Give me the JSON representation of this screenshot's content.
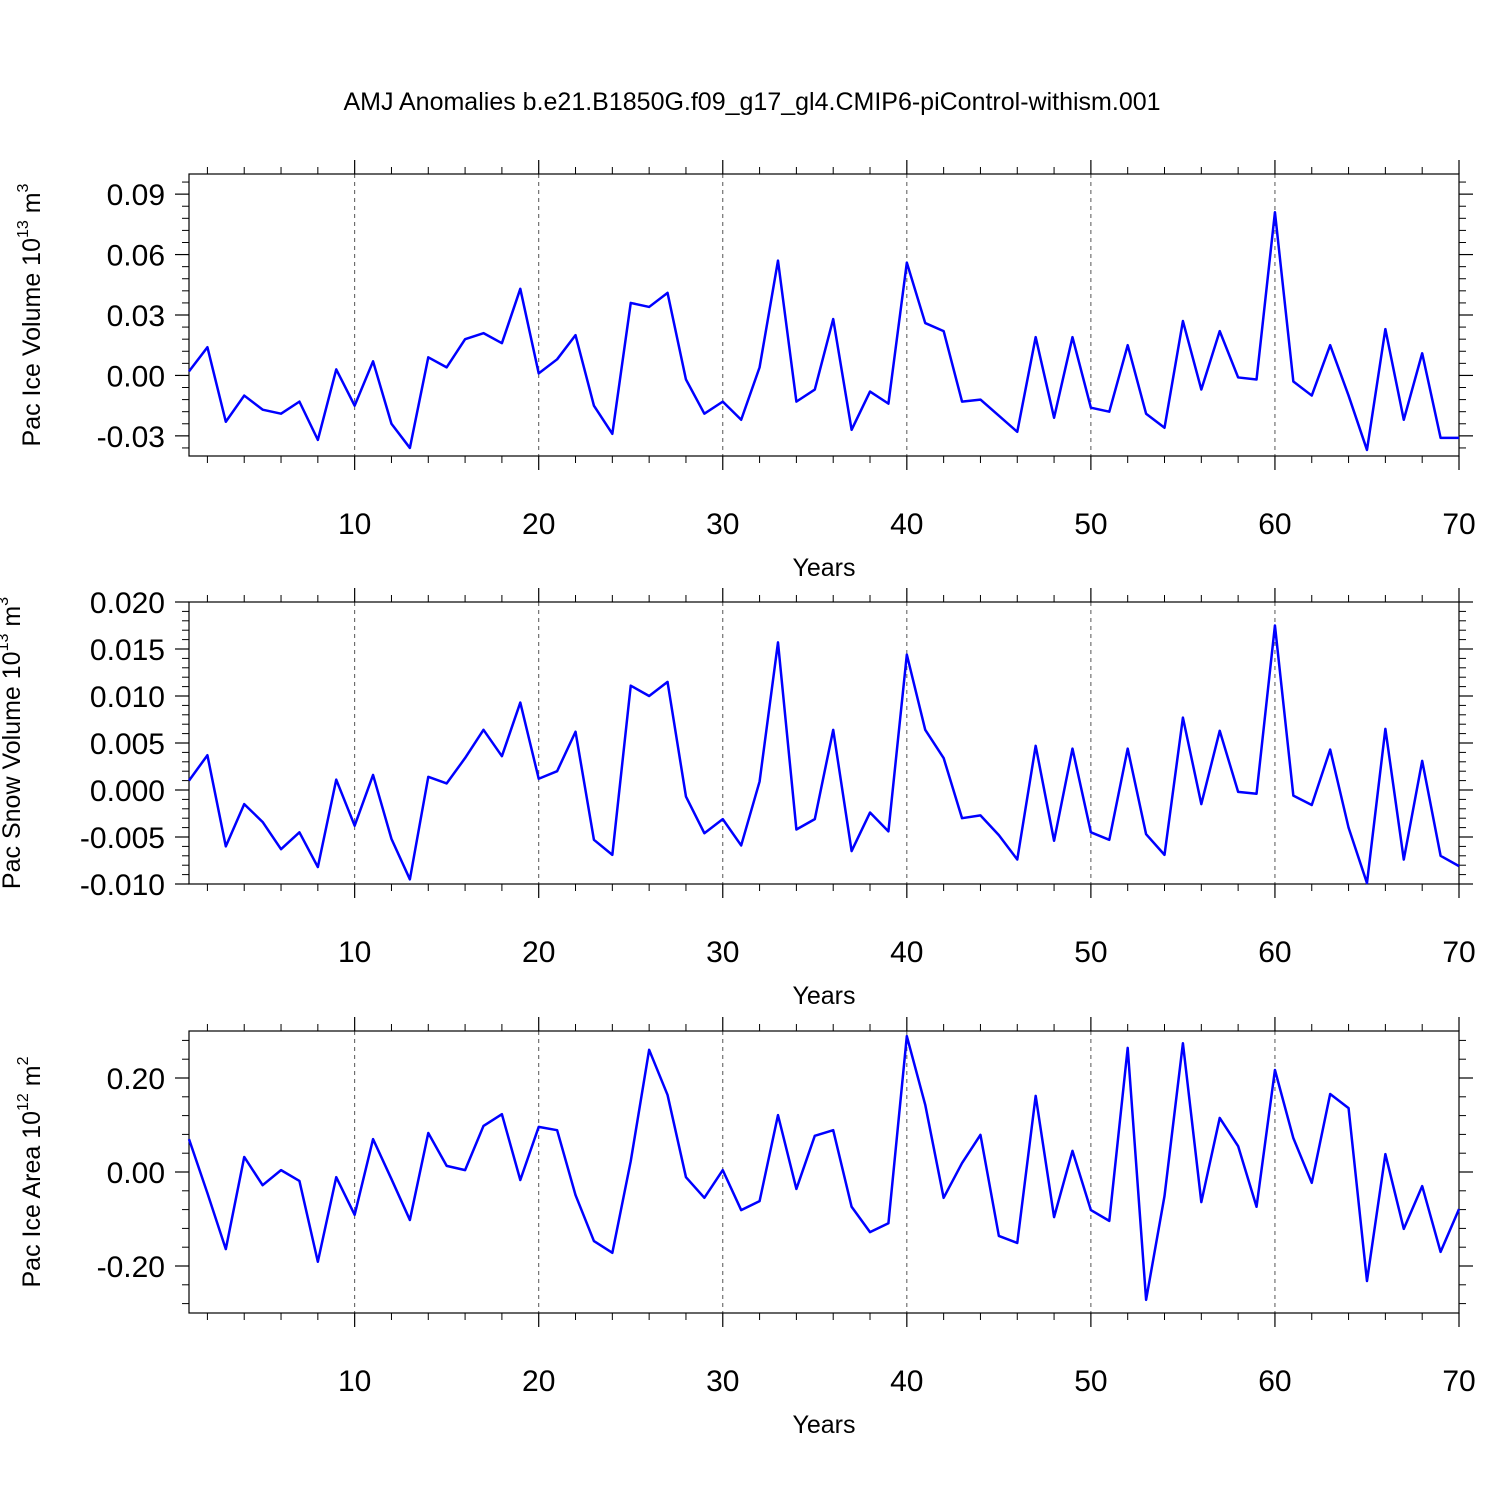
{
  "chart_data": [
    {
      "type": "line",
      "title": "AMJ Anomalies b.e21.B1850G.f09_g17_gl4.CMIP6-piControl-withism.001",
      "ylabel": [
        "Pac Ice Volume 10",
        "13",
        " m",
        "3"
      ],
      "xlabel": "Years",
      "color": "#0000ff",
      "xlim": [
        1,
        70
      ],
      "xticks": [
        10,
        20,
        30,
        40,
        50,
        60,
        70
      ],
      "ylim": [
        -0.04,
        0.1
      ],
      "yticks": [
        -0.03,
        {
          "value": 0,
          "label": "0.00"
        },
        0.03,
        0.06,
        0.09
      ],
      "grid": true,
      "x": [
        1,
        2,
        3,
        4,
        5,
        6,
        7,
        8,
        9,
        10,
        11,
        12,
        13,
        14,
        15,
        16,
        17,
        18,
        19,
        20,
        21,
        22,
        23,
        24,
        25,
        26,
        27,
        28,
        29,
        30,
        31,
        32,
        33,
        34,
        35,
        36,
        37,
        38,
        39,
        40,
        41,
        42,
        43,
        44,
        45,
        46,
        47,
        48,
        49,
        50,
        51,
        52,
        53,
        54,
        55,
        56,
        57,
        58,
        59,
        60,
        61,
        62,
        63,
        64,
        65,
        66,
        67,
        68,
        69,
        70
      ],
      "values": [
        0.002,
        0.014,
        -0.023,
        -0.01,
        -0.017,
        -0.019,
        -0.013,
        -0.032,
        0.003,
        -0.015,
        0.007,
        -0.024,
        -0.036,
        0.009,
        0.004,
        0.018,
        0.021,
        0.016,
        0.043,
        0.001,
        0.008,
        0.02,
        -0.015,
        -0.029,
        0.036,
        0.034,
        0.041,
        -0.002,
        -0.019,
        -0.013,
        -0.022,
        0.004,
        0.057,
        -0.013,
        -0.007,
        0.028,
        -0.027,
        -0.008,
        -0.014,
        0.056,
        0.026,
        0.022,
        -0.013,
        -0.012,
        -0.02,
        -0.028,
        0.019,
        -0.021,
        0.019,
        -0.016,
        -0.018,
        0.015,
        -0.019,
        -0.026,
        0.027,
        -0.007,
        0.022,
        -0.001,
        -0.002,
        0.081,
        -0.003,
        -0.01,
        0.015,
        -0.01,
        -0.037,
        0.023,
        -0.022,
        0.011,
        -0.031,
        -0.031
      ]
    },
    {
      "type": "line",
      "ylabel": [
        "Pac Snow Volume 10",
        "13",
        " m",
        "3"
      ],
      "xlabel": "Years",
      "color": "#0000ff",
      "xlim": [
        1,
        70
      ],
      "xticks": [
        10,
        20,
        30,
        40,
        50,
        60,
        70
      ],
      "ylim": [
        -0.01,
        0.02
      ],
      "yticks": [
        {
          "value": -0.01,
          "label": "-0.010"
        },
        {
          "value": -0.005,
          "label": "-0.005"
        },
        {
          "value": 0,
          "label": "0.000"
        },
        {
          "value": 0.005,
          "label": "0.005"
        },
        {
          "value": 0.01,
          "label": "0.010"
        },
        {
          "value": 0.015,
          "label": "0.015"
        },
        {
          "value": 0.02,
          "label": "0.020"
        }
      ],
      "grid": true,
      "x": [
        1,
        2,
        3,
        4,
        5,
        6,
        7,
        8,
        9,
        10,
        11,
        12,
        13,
        14,
        15,
        16,
        17,
        18,
        19,
        20,
        21,
        22,
        23,
        24,
        25,
        26,
        27,
        28,
        29,
        30,
        31,
        32,
        33,
        34,
        35,
        36,
        37,
        38,
        39,
        40,
        41,
        42,
        43,
        44,
        45,
        46,
        47,
        48,
        49,
        50,
        51,
        52,
        53,
        54,
        55,
        56,
        57,
        58,
        59,
        60,
        61,
        62,
        63,
        64,
        65,
        66,
        67,
        68,
        69,
        70
      ],
      "values": [
        0.001,
        0.0037,
        -0.006,
        -0.0015,
        -0.0034,
        -0.0063,
        -0.0045,
        -0.0082,
        0.0011,
        -0.0038,
        0.0016,
        -0.0052,
        -0.0095,
        0.0014,
        0.0007,
        0.0034,
        0.0064,
        0.0036,
        0.0093,
        0.0012,
        0.002,
        0.0062,
        -0.0053,
        -0.0069,
        0.0111,
        0.01,
        0.0115,
        -0.0007,
        -0.0046,
        -0.0031,
        -0.0059,
        0.0009,
        0.0157,
        -0.0042,
        -0.0031,
        0.0064,
        -0.0065,
        -0.0024,
        -0.0044,
        0.0144,
        0.0064,
        0.0034,
        -0.003,
        -0.0027,
        -0.0048,
        -0.0074,
        0.0047,
        -0.0054,
        0.0044,
        -0.0045,
        -0.0053,
        0.0044,
        -0.0047,
        -0.0069,
        0.0077,
        -0.0015,
        0.0063,
        -0.0002,
        -0.0004,
        0.0175,
        -0.0006,
        -0.0016,
        0.0043,
        -0.004,
        -0.0099,
        0.0065,
        -0.0074,
        0.0031,
        -0.007,
        -0.0081
      ]
    },
    {
      "type": "line",
      "ylabel": [
        "Pac Ice Area 10",
        "12",
        " m",
        "2"
      ],
      "xlabel": "Years",
      "color": "#0000ff",
      "xlim": [
        1,
        70
      ],
      "xticks": [
        10,
        20,
        30,
        40,
        50,
        60,
        70
      ],
      "ylim": [
        -0.3,
        0.3
      ],
      "yticks": [
        {
          "value": -0.2,
          "label": "-0.20"
        },
        {
          "value": 0,
          "label": "0.00"
        },
        {
          "value": 0.2,
          "label": "0.20"
        }
      ],
      "grid": true,
      "x": [
        1,
        2,
        3,
        4,
        5,
        6,
        7,
        8,
        9,
        10,
        11,
        12,
        13,
        14,
        15,
        16,
        17,
        18,
        19,
        20,
        21,
        22,
        23,
        24,
        25,
        26,
        27,
        28,
        29,
        30,
        31,
        32,
        33,
        34,
        35,
        36,
        37,
        38,
        39,
        40,
        41,
        42,
        43,
        44,
        45,
        46,
        47,
        48,
        49,
        50,
        51,
        52,
        53,
        54,
        55,
        56,
        57,
        58,
        59,
        60,
        61,
        62,
        63,
        64,
        65,
        66,
        67,
        68,
        69,
        70
      ],
      "values": [
        0.07,
        -0.045,
        -0.164,
        0.032,
        -0.028,
        0.004,
        -0.019,
        -0.191,
        -0.011,
        -0.091,
        0.07,
        -0.015,
        -0.102,
        0.083,
        0.013,
        0.004,
        0.098,
        0.123,
        -0.017,
        0.096,
        0.089,
        -0.049,
        -0.147,
        -0.172,
        0.023,
        0.26,
        0.164,
        -0.011,
        -0.055,
        0.004,
        -0.081,
        -0.062,
        0.121,
        -0.036,
        0.077,
        0.089,
        -0.074,
        -0.128,
        -0.109,
        0.289,
        0.143,
        -0.055,
        0.019,
        0.079,
        -0.136,
        -0.151,
        0.162,
        -0.096,
        0.045,
        -0.081,
        -0.104,
        0.264,
        -0.272,
        -0.051,
        0.274,
        -0.064,
        0.115,
        0.055,
        -0.074,
        0.217,
        0.072,
        -0.023,
        0.166,
        0.136,
        -0.232,
        0.038,
        -0.121,
        -0.03,
        -0.17,
        -0.079
      ]
    }
  ]
}
